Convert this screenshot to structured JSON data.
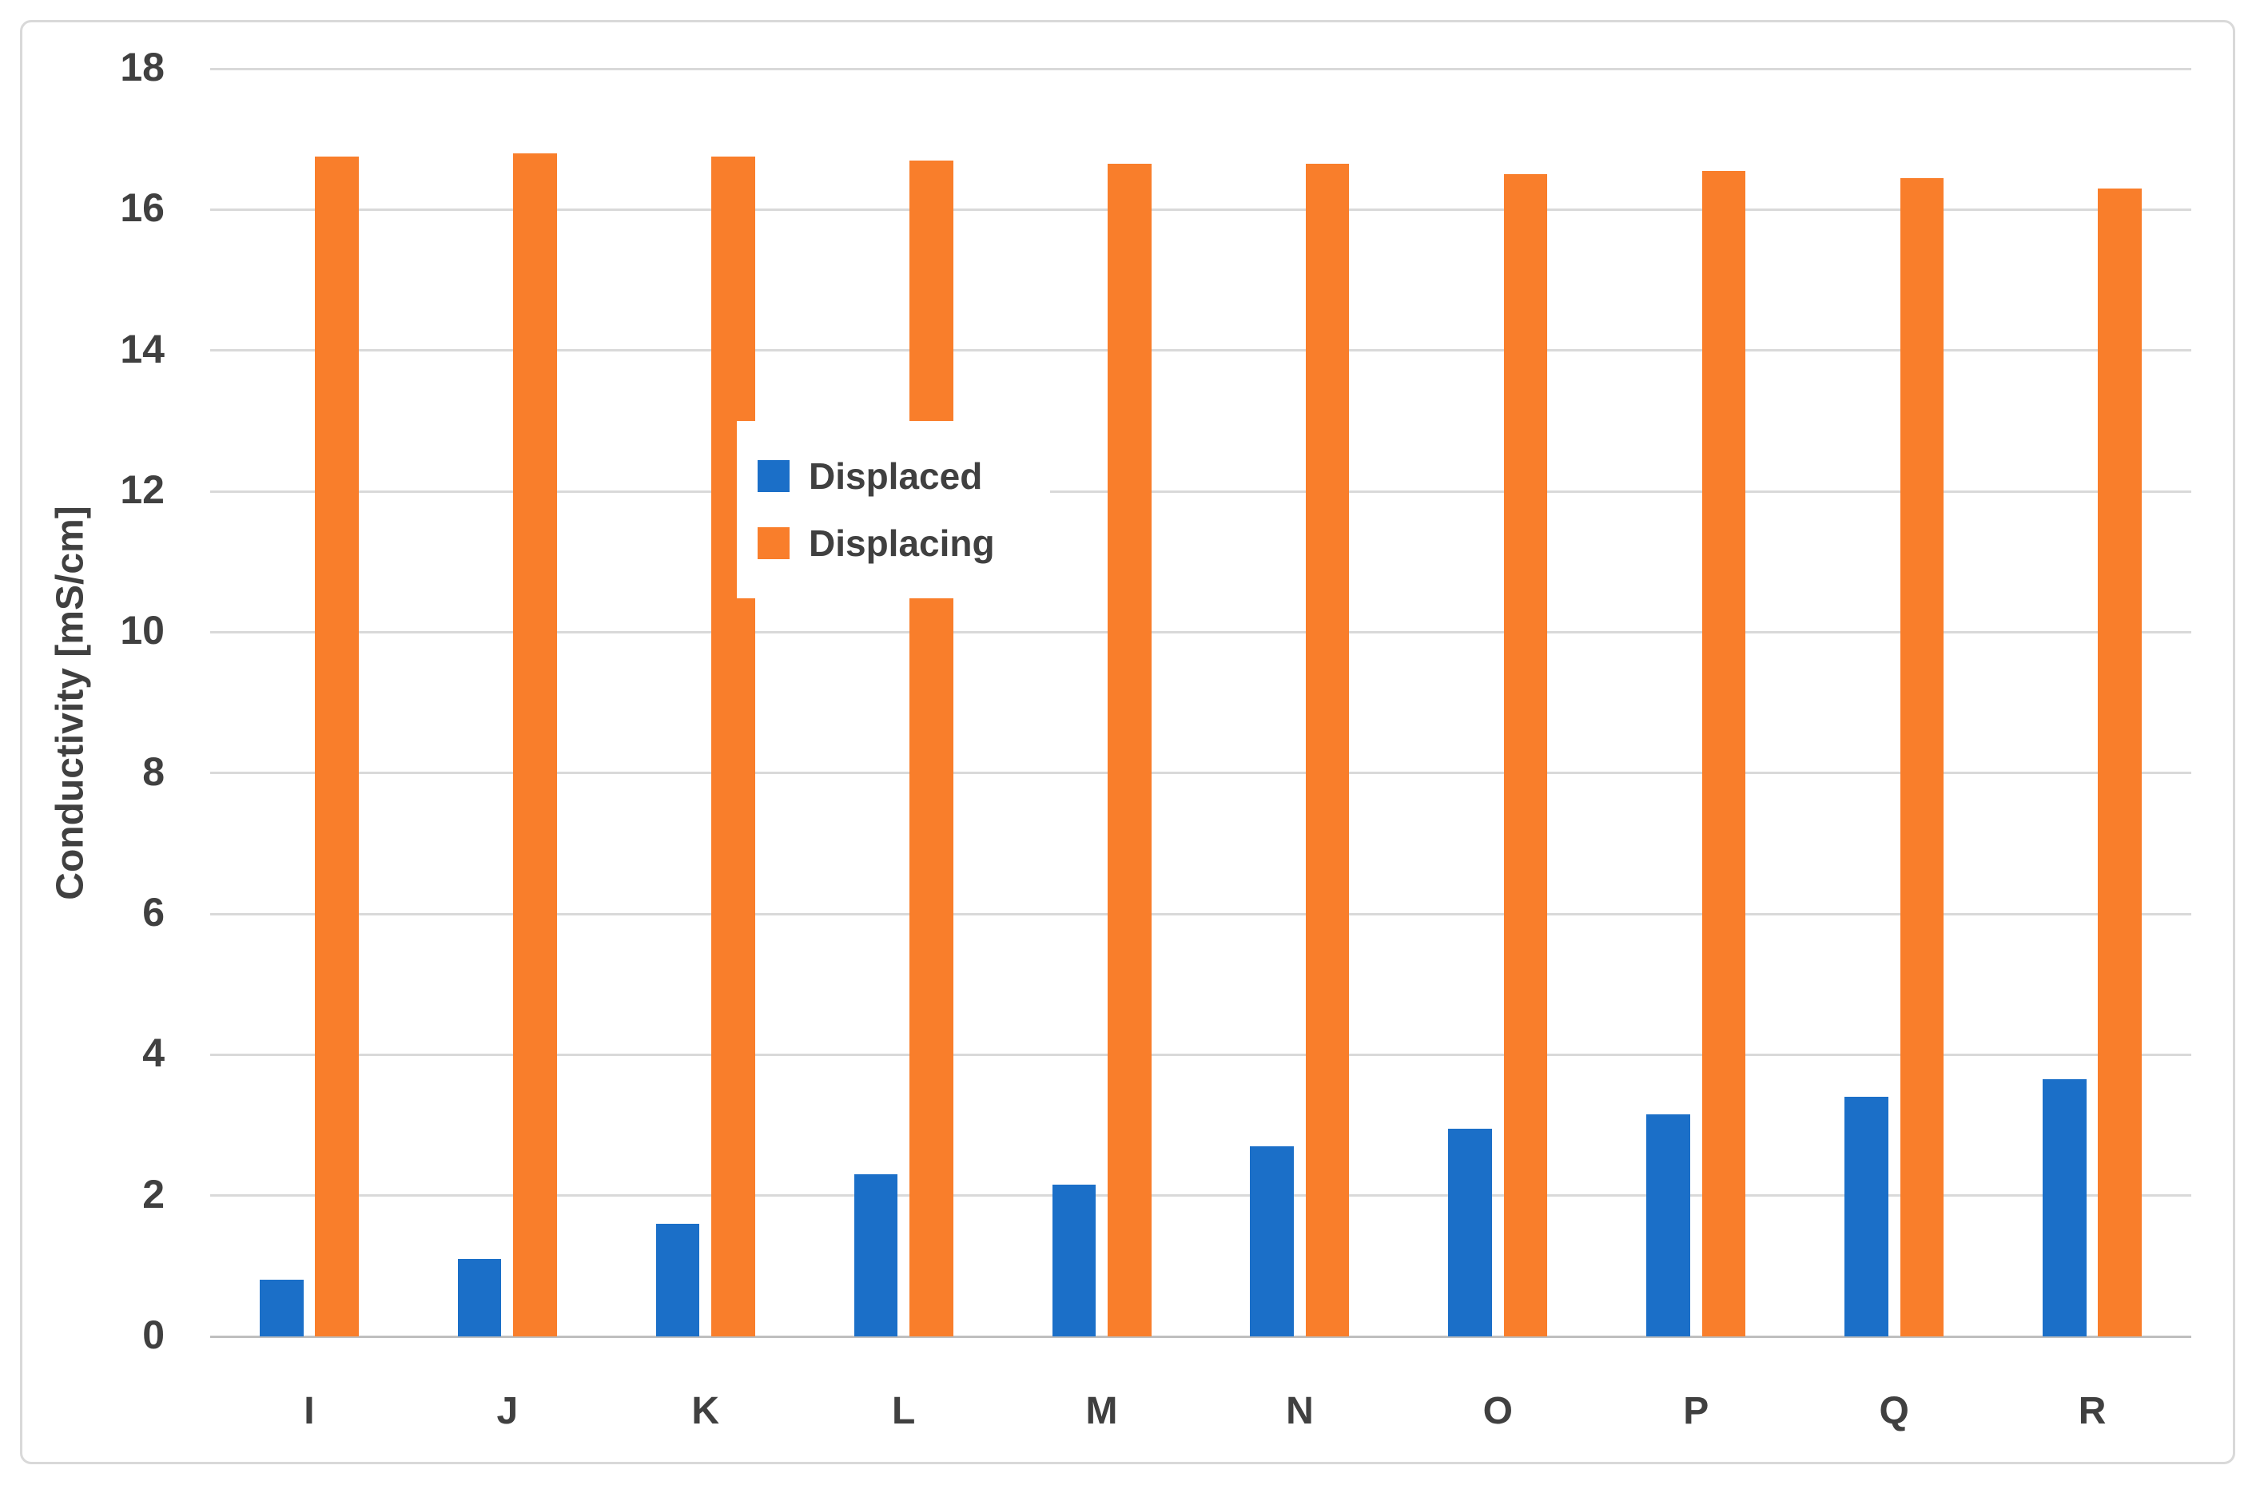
{
  "figure": {
    "background": "#ffffff",
    "border_color": "#d9d9d9"
  },
  "chart_data": {
    "type": "bar",
    "title": "",
    "categories": [
      "I",
      "J",
      "K",
      "L",
      "M",
      "N",
      "O",
      "P",
      "Q",
      "R"
    ],
    "series": [
      {
        "name": "Displaced",
        "color": "#1b6fc8",
        "values": [
          0.8,
          1.1,
          1.6,
          2.3,
          2.15,
          2.7,
          2.95,
          3.15,
          3.4,
          3.65
        ]
      },
      {
        "name": "Displacing",
        "color": "#f97e2b",
        "values": [
          16.75,
          16.8,
          16.75,
          16.7,
          16.65,
          16.65,
          16.5,
          16.55,
          16.45,
          16.3
        ]
      }
    ],
    "xlabel": "",
    "ylabel": "Conductivity [mS/cm]",
    "ylim": [
      0,
      18
    ],
    "yticks": [
      0,
      2,
      4,
      6,
      8,
      10,
      12,
      14,
      16,
      18
    ],
    "grid": "horizontal",
    "gridline_color": "#d9d9d9",
    "axis_line_color": "#bfbfbf",
    "tick_label_color": "#404040",
    "legend": {
      "position": "inside-center-left",
      "entries": [
        "Displaced",
        "Displacing"
      ]
    }
  }
}
